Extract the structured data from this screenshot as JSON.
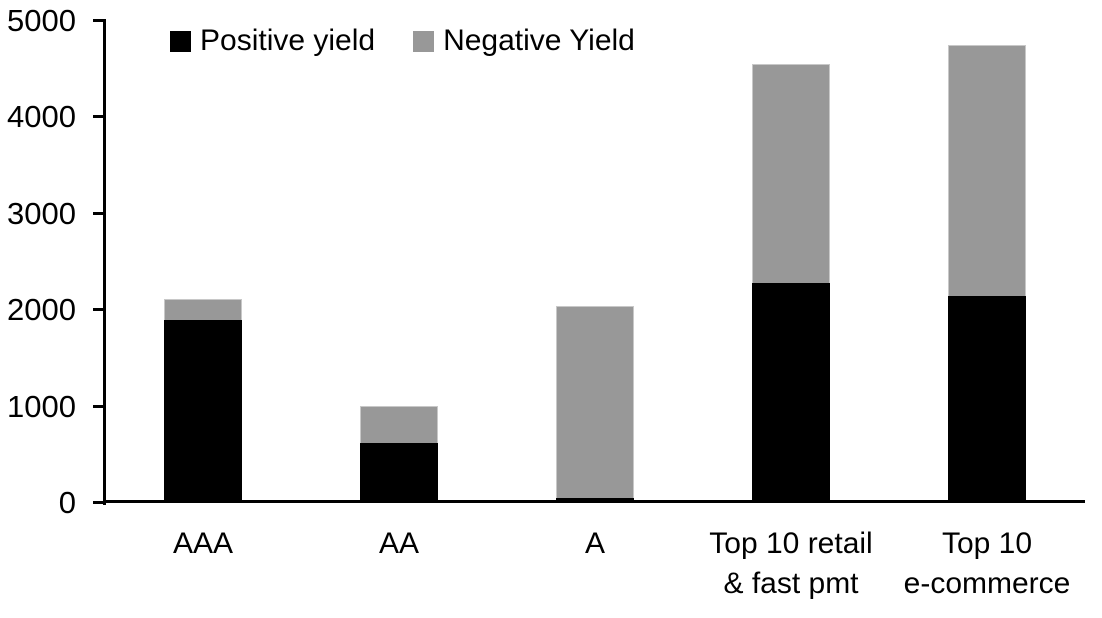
{
  "chart_data": {
    "type": "bar",
    "stacked": true,
    "title": "",
    "xlabel": "",
    "ylabel": "",
    "categories": [
      "AAA",
      "AA",
      "A",
      "Top 10 retail\n& fast pmt",
      "Top 10\ne-commerce"
    ],
    "series": [
      {
        "name": "Positive yield",
        "color": "#000000",
        "values": [
          1890,
          610,
          40,
          2270,
          2140
        ]
      },
      {
        "name": "Negative Yield",
        "color": "#989898",
        "values": [
          220,
          390,
          1990,
          2270,
          2600
        ]
      }
    ],
    "totals": [
      2110,
      1000,
      2030,
      4540,
      4740
    ],
    "ylim": [
      0,
      5000
    ],
    "yticks": [
      0,
      1000,
      2000,
      3000,
      4000,
      5000
    ],
    "grid": false,
    "legend_position": "top-left",
    "colors": {
      "positive": "#000000",
      "negative": "#989898",
      "axis": "#000000",
      "background": "#ffffff"
    }
  }
}
